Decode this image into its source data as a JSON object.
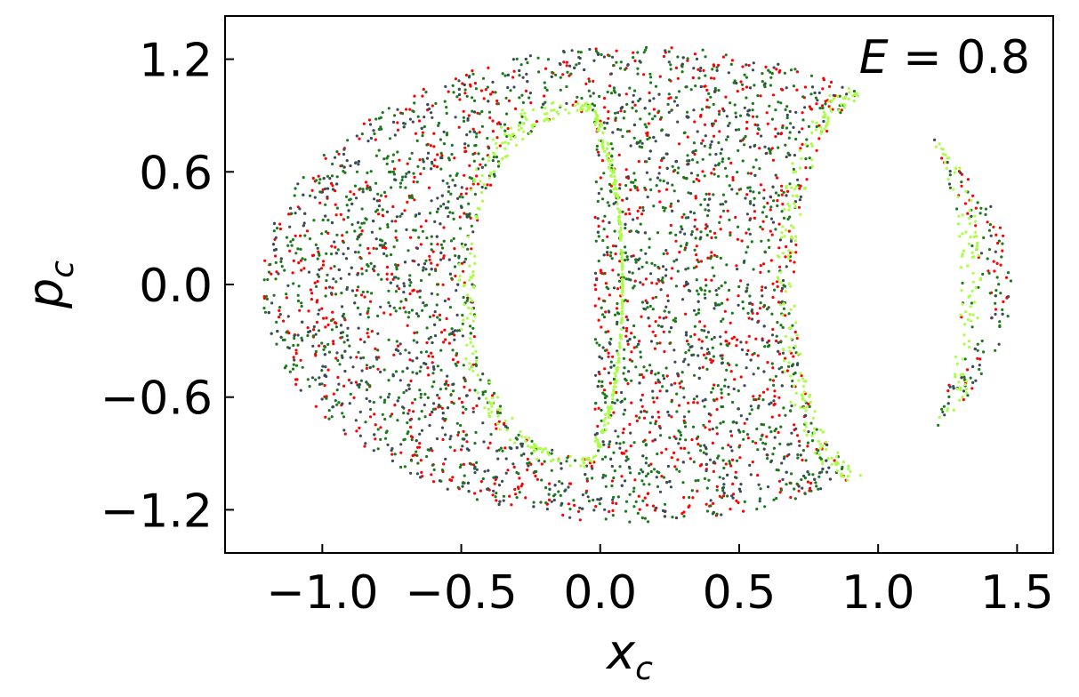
{
  "chart_data": {
    "type": "scatter",
    "title": "",
    "annotation": {
      "var": "E",
      "equals": " = ",
      "value": "0.8"
    },
    "xlabel": {
      "base": "x",
      "sub": "c"
    },
    "ylabel": {
      "base": "p",
      "sub": "c"
    },
    "xlim": [
      -1.35,
      1.63
    ],
    "ylim": [
      -1.43,
      1.43
    ],
    "xticks": [
      -1.0,
      -0.5,
      0.0,
      0.5,
      1.0,
      1.5
    ],
    "xtick_labels": [
      "−1.0",
      "−0.5",
      "0.0",
      "0.5",
      "1.0",
      "1.5"
    ],
    "yticks": [
      -1.2,
      -0.6,
      0.0,
      0.6,
      1.2
    ],
    "ytick_labels": [
      "−1.2",
      "−0.6",
      "0.0",
      "0.6",
      "1.2"
    ],
    "grid": false,
    "legend": "none",
    "series": [
      {
        "color": "#ff0000",
        "count": 1100
      },
      {
        "color": "#1a7a1a",
        "count": 1800
      },
      {
        "color": "#3b4a5a",
        "count": 900
      },
      {
        "color": "#aaff44",
        "count": 700
      }
    ],
    "region": {
      "outer_boundary": {
        "x_min": -1.22,
        "x_max": 1.48,
        "p_max": 1.27
      },
      "empty_island_left": {
        "x_range": [
          -0.45,
          -0.02
        ],
        "p_range": [
          -0.95,
          0.9
        ]
      },
      "empty_island_right": {
        "x_range": [
          0.7,
          1.25
        ],
        "p_range": [
          -1.0,
          1.0
        ]
      }
    }
  }
}
